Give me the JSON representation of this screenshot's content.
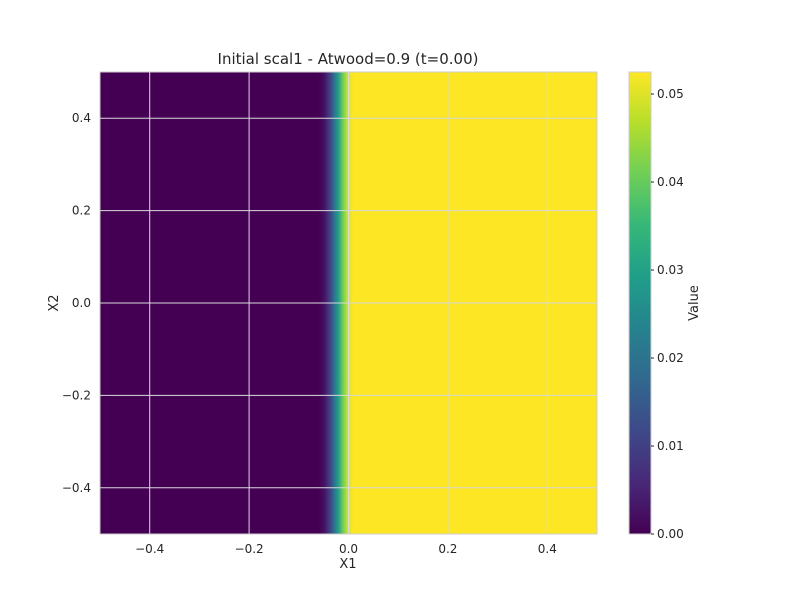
{
  "chart_data": {
    "type": "heatmap",
    "title": "Initial scal1 - Atwood=0.9 (t=0.00)",
    "xlabel": "X1",
    "ylabel": "X2",
    "xlim": [
      -0.5,
      0.5
    ],
    "ylim": [
      -0.5,
      0.5
    ],
    "x_ticks": [
      -0.4,
      -0.2,
      0.0,
      0.2,
      0.4
    ],
    "x_tick_labels": [
      "−0.4",
      "−0.2",
      "0.0",
      "0.2",
      "0.4"
    ],
    "y_ticks": [
      0.4,
      0.2,
      0.0,
      -0.2,
      -0.4
    ],
    "y_tick_labels": [
      "0.4",
      "0.2",
      "0.0",
      "−0.2",
      "−0.4"
    ],
    "grid": true,
    "colormap": "viridis",
    "field": {
      "description_of_values": "scal1 varies only along X1; uniform along X2",
      "x": [
        -0.5,
        -0.06,
        -0.05,
        -0.04,
        -0.03,
        -0.02,
        -0.01,
        0.0,
        0.01,
        0.5
      ],
      "value": [
        0.0,
        0.0,
        0.002,
        0.008,
        0.018,
        0.03,
        0.042,
        0.05,
        0.0525,
        0.0525
      ]
    },
    "colorbar": {
      "label": "Value",
      "min": 0.0,
      "max": 0.0525,
      "ticks": [
        0.0,
        0.01,
        0.02,
        0.03,
        0.04,
        0.05
      ],
      "tick_labels": [
        "0.00",
        "0.01",
        "0.02",
        "0.03",
        "0.04",
        "0.05"
      ]
    },
    "colors": {
      "viridis": [
        "#440154",
        "#482878",
        "#3e4989",
        "#31688e",
        "#26828e",
        "#1f9e89",
        "#35b779",
        "#6ece58",
        "#b5de2b",
        "#fde725"
      ],
      "grid": "#d9d9d9",
      "frame": "#cccccc"
    }
  }
}
